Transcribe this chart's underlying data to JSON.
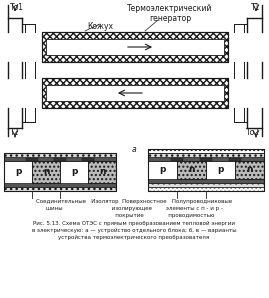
{
  "bg_color": "#ffffff",
  "fig_width": 2.69,
  "fig_height": 2.98,
  "title_a": "а",
  "label_to1": "То1",
  "label_t1": "T1",
  "label_t2": "T2",
  "label_to2": "То2",
  "label_kozuh": "Кожух",
  "label_generator": "Термоэлектрический\nгенератор",
  "dark": "#1a1a1a",
  "gray_fill": "#cccccc",
  "hatch_fill": "#aaaaaa",
  "cap_line1": "Соединительные   Изолятор  Поверхностное   Полупроводниковые",
  "cap_line2": "шины                            изолирующее        элементы с п - и р -",
  "cap_line3": "                                   покрытие              проводимостью",
  "cap_line4": "",
  "cap_line5": "Рис. 5.13. Схема ОТЭС с прямым преобразованием тепловой энергии",
  "cap_line6": "в электрическую: а — устройство отдельного блока; б, в — варианты",
  "cap_line7": "устройства термоэлектрического преобразователя"
}
